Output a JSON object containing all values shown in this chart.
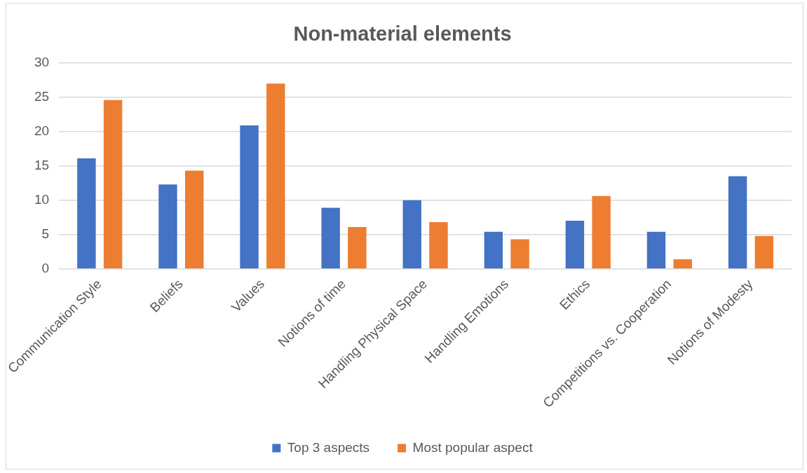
{
  "chart_data": {
    "type": "bar",
    "title": "Non-material elements",
    "categories": [
      "Communication Style",
      "Beliefs",
      "Values",
      "Notions of time",
      "Handling Physical Space",
      "Handling Emotions",
      "Ethics",
      "Competitions vs. Cooperation",
      "Notions of Modesty"
    ],
    "series": [
      {
        "name": "Top 3 aspects",
        "color": "#4472c4",
        "values": [
          16.1,
          12.3,
          20.9,
          8.9,
          10.0,
          5.4,
          7.0,
          5.4,
          13.5
        ]
      },
      {
        "name": "Most popular aspect",
        "color": "#ed7d31",
        "values": [
          24.6,
          14.3,
          27.0,
          6.1,
          6.8,
          4.3,
          10.6,
          1.4,
          4.8
        ]
      }
    ],
    "ylim": [
      0,
      30
    ],
    "yticks": [
      0,
      5,
      10,
      15,
      20,
      25,
      30
    ],
    "grid": "y",
    "legend": "bottom"
  }
}
